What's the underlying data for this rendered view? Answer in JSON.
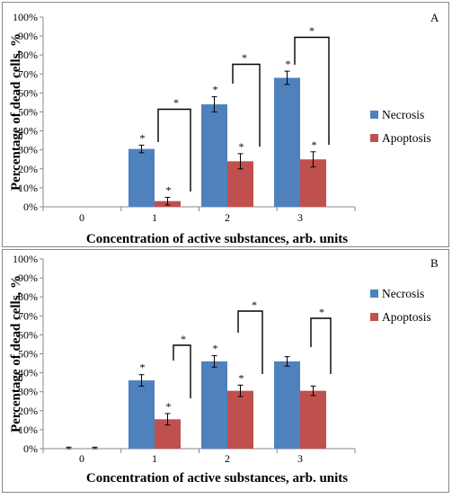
{
  "chart_data": [
    {
      "panel": "A",
      "type": "bar",
      "xlabel": "Concentration of active substances, arb. units",
      "ylabel": "Percentage of dead cells, %",
      "categories": [
        "0",
        "1",
        "2",
        "3"
      ],
      "ylim": [
        0,
        100
      ],
      "yticks": [
        "0%",
        "10%",
        "20%",
        "30%",
        "40%",
        "50%",
        "60%",
        "70%",
        "80%",
        "90%",
        "100%"
      ],
      "legend_position": "right",
      "series": [
        {
          "name": "Necrosis",
          "color": "#4f81bd",
          "values": [
            0,
            30.5,
            54,
            68
          ],
          "errors": [
            0,
            2,
            4,
            3.5
          ],
          "significance": [
            false,
            true,
            true,
            true
          ]
        },
        {
          "name": "Apoptosis",
          "color": "#c0504d",
          "values": [
            0,
            3,
            24,
            25
          ],
          "errors": [
            0,
            2,
            4,
            4
          ],
          "significance": [
            false,
            true,
            true,
            true
          ]
        }
      ],
      "comparison_marks": [
        {
          "category": "1",
          "label": "*"
        },
        {
          "category": "2",
          "label": "*"
        },
        {
          "category": "3",
          "label": "*"
        }
      ]
    },
    {
      "panel": "B",
      "type": "bar",
      "xlabel": "Concentration of active substances, arb. units",
      "ylabel": "Percentage of dead cells, %",
      "categories": [
        "0",
        "1",
        "2",
        "3"
      ],
      "ylim": [
        0,
        100
      ],
      "yticks": [
        "0%",
        "10%",
        "20%",
        "30%",
        "40%",
        "50%",
        "60%",
        "70%",
        "80%",
        "90%",
        "100%"
      ],
      "legend_position": "right",
      "series": [
        {
          "name": "Necrosis",
          "color": "#4f81bd",
          "values": [
            0,
            36,
            46,
            46
          ],
          "errors": [
            0.8,
            3,
            3,
            2.5
          ],
          "significance": [
            false,
            true,
            true,
            false
          ]
        },
        {
          "name": "Apoptosis",
          "color": "#c0504d",
          "values": [
            0,
            15.5,
            30.5,
            30.5
          ],
          "errors": [
            0.8,
            3,
            3,
            2.5
          ],
          "significance": [
            false,
            true,
            true,
            false
          ]
        }
      ],
      "comparison_marks": [
        {
          "category": "1",
          "label": "*"
        },
        {
          "category": "2",
          "label": "*"
        },
        {
          "category": "3",
          "label": "*"
        }
      ]
    }
  ]
}
